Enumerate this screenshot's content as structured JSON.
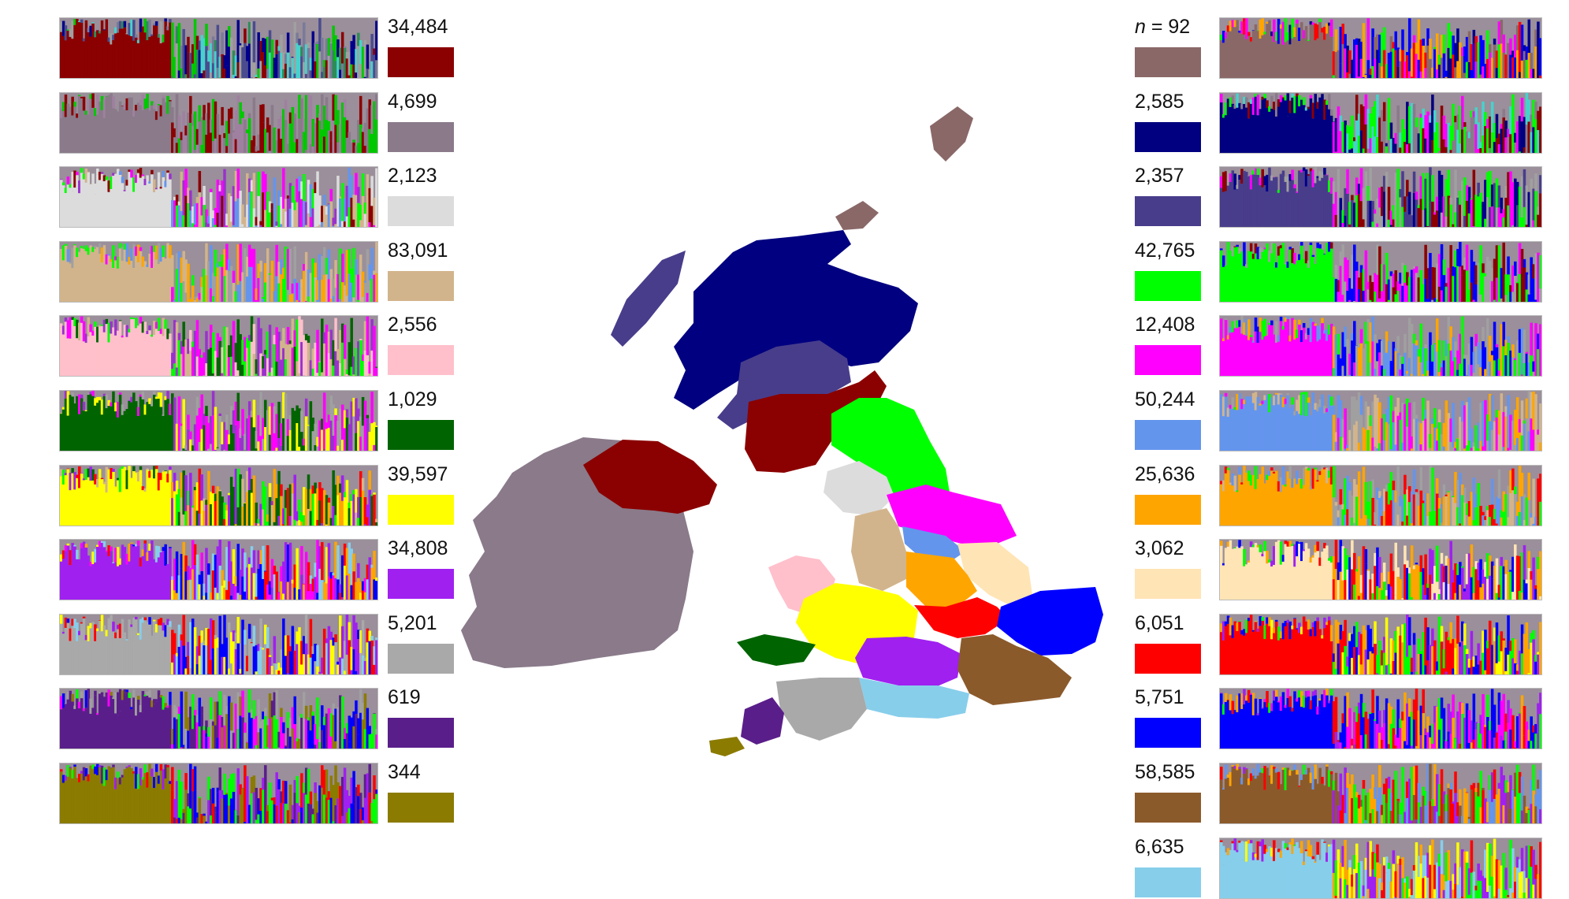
{
  "left_regions": [
    {
      "count": "34,484",
      "color": "#8b0000",
      "mix": [
        "#8b0000",
        "#2e8b57",
        "#7a7a9a",
        "#48d1cc",
        "#00c800",
        "#4b4b8f",
        "#a0a0a0",
        "#00008b"
      ]
    },
    {
      "count": "4,699",
      "color": "#8a7a8a",
      "mix": [
        "#8a7a8a",
        "#8b0000",
        "#00c800",
        "#a080a0"
      ]
    },
    {
      "count": "2,123",
      "color": "#dcdcdc",
      "mix": [
        "#dcdcdc",
        "#00ff00",
        "#d2b48c",
        "#6495ed",
        "#ff00ff",
        "#8b0000",
        "#9932cc"
      ]
    },
    {
      "count": "83,091",
      "color": "#d2b48c",
      "mix": [
        "#d2b48c",
        "#6495ed",
        "#ffa500",
        "#a0a0a0",
        "#ff00ff",
        "#00ff00"
      ]
    },
    {
      "count": "2,556",
      "color": "#ffc0cb",
      "mix": [
        "#ffc0cb",
        "#006400",
        "#d2b48c",
        "#9932cc",
        "#ff00ff",
        "#00ff00"
      ]
    },
    {
      "count": "1,029",
      "color": "#006400",
      "mix": [
        "#006400",
        "#ffff00",
        "#9932cc",
        "#ff00ff",
        "#a0a0a0"
      ]
    },
    {
      "count": "39,597",
      "color": "#ffff00",
      "mix": [
        "#ffff00",
        "#a020f0",
        "#d2b48c",
        "#006400",
        "#ffa500",
        "#ff0000",
        "#00ff00"
      ]
    },
    {
      "count": "34,808",
      "color": "#a020f0",
      "mix": [
        "#a020f0",
        "#87ceeb",
        "#ffff00",
        "#ff0000",
        "#ffa500",
        "#0000ff",
        "#ff00ff"
      ]
    },
    {
      "count": "5,201",
      "color": "#a9a9a9",
      "mix": [
        "#a9a9a9",
        "#a020f0",
        "#87ceeb",
        "#ffff00",
        "#ff0000",
        "#0000ff"
      ]
    },
    {
      "count": "619",
      "color": "#5a1e8a",
      "mix": [
        "#5a1e8a",
        "#8b7b00",
        "#a0a0a0",
        "#ff00ff",
        "#00ff00",
        "#0000ff"
      ]
    },
    {
      "count": "344",
      "color": "#8b7b00",
      "mix": [
        "#8b7b00",
        "#a020f0",
        "#5a1e8a",
        "#0000ff",
        "#ff0000",
        "#00ff00"
      ]
    }
  ],
  "right_regions": [
    {
      "n_prefix": "n",
      "count": " = 92",
      "color": "#8a6868",
      "mix": [
        "#8a6868",
        "#00008b",
        "#ffa500",
        "#ff0000",
        "#00ff00",
        "#ff00ff",
        "#0000ff"
      ]
    },
    {
      "count": "2,585",
      "color": "#000080",
      "mix": [
        "#000080",
        "#48d1cc",
        "#8a7a8a",
        "#00ff00",
        "#ff00ff",
        "#8b0000"
      ]
    },
    {
      "count": "2,357",
      "color": "#483d8b",
      "mix": [
        "#483d8b",
        "#8b0000",
        "#00008b",
        "#a0a0a0",
        "#00ff00",
        "#ff00ff"
      ]
    },
    {
      "count": "42,765",
      "color": "#00ff00",
      "mix": [
        "#00ff00",
        "#ff00ff",
        "#8b0000",
        "#a0a0a0",
        "#0000ff"
      ]
    },
    {
      "count": "12,408",
      "color": "#ff00ff",
      "mix": [
        "#ff00ff",
        "#00ff00",
        "#6495ed",
        "#ffa500",
        "#a0a0a0",
        "#0000ff"
      ]
    },
    {
      "count": "50,244",
      "color": "#6495ed",
      "mix": [
        "#6495ed",
        "#d2b48c",
        "#ffa500",
        "#ff00ff",
        "#00ff00",
        "#a0a0a0"
      ]
    },
    {
      "count": "25,636",
      "color": "#ffa500",
      "mix": [
        "#ffa500",
        "#ff0000",
        "#6495ed",
        "#a0a0a0",
        "#00ff00",
        "#d2b48c"
      ]
    },
    {
      "count": "3,062",
      "color": "#ffe4b5",
      "mix": [
        "#ffe4b5",
        "#ffa500",
        "#a020f0",
        "#0000ff",
        "#ff0000",
        "#00ff00"
      ]
    },
    {
      "count": "6,051",
      "color": "#ff0000",
      "mix": [
        "#ff0000",
        "#a020f0",
        "#ffa500",
        "#ffff00",
        "#0000ff",
        "#00ff00"
      ]
    },
    {
      "count": "5,751",
      "color": "#0000ff",
      "mix": [
        "#0000ff",
        "#ff0000",
        "#a020f0",
        "#ffa500",
        "#ff00ff",
        "#00ff00"
      ]
    },
    {
      "count": "58,585",
      "color": "#8b5a2b",
      "mix": [
        "#8b5a2b",
        "#a020f0",
        "#6495ed",
        "#ff0000",
        "#00ff00",
        "#ffa500"
      ]
    },
    {
      "count": "6,635",
      "color": "#87ceeb",
      "mix": [
        "#87ceeb",
        "#a020f0",
        "#ffa500",
        "#ff0000",
        "#00ff00",
        "#ffff00"
      ]
    }
  ],
  "map": {
    "regions": [
      {
        "name": "ireland",
        "color": "#8a7a8a"
      },
      {
        "name": "northern-ireland",
        "color": "#8b0000"
      },
      {
        "name": "shetland",
        "color": "#8a6868"
      },
      {
        "name": "orkney",
        "color": "#8a6868"
      },
      {
        "name": "outer-hebrides",
        "color": "#483d8b"
      },
      {
        "name": "north-scotland",
        "color": "#000080"
      },
      {
        "name": "central-scotland",
        "color": "#483d8b"
      },
      {
        "name": "south-scotland",
        "color": "#8b0000"
      },
      {
        "name": "northeast-england",
        "color": "#00ff00"
      },
      {
        "name": "cumbria",
        "color": "#dcdcdc"
      },
      {
        "name": "yorkshire",
        "color": "#ff00ff"
      },
      {
        "name": "lancashire",
        "color": "#d2b48c"
      },
      {
        "name": "south-yorkshire",
        "color": "#6495ed"
      },
      {
        "name": "lincolnshire",
        "color": "#ffe4b5"
      },
      {
        "name": "north-wales",
        "color": "#ffc0cb"
      },
      {
        "name": "midlands",
        "color": "#ffa500"
      },
      {
        "name": "welsh-borders",
        "color": "#ffff00"
      },
      {
        "name": "south-midlands",
        "color": "#ff0000"
      },
      {
        "name": "east-anglia",
        "color": "#0000ff"
      },
      {
        "name": "pembrokeshire",
        "color": "#006400"
      },
      {
        "name": "southwest-central",
        "color": "#a020f0"
      },
      {
        "name": "southeast",
        "color": "#8b5a2b"
      },
      {
        "name": "south-central",
        "color": "#87ceeb"
      },
      {
        "name": "devon",
        "color": "#a9a9a9"
      },
      {
        "name": "cornwall",
        "color": "#5a1e8a"
      },
      {
        "name": "west-cornwall",
        "color": "#8b7b00"
      }
    ]
  }
}
